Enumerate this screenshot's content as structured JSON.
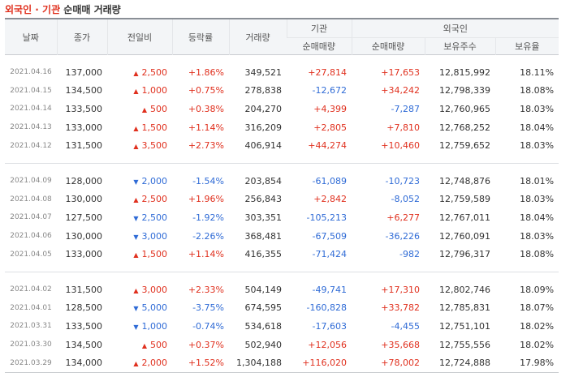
{
  "title": {
    "part1": "외국인 · 기관",
    "part2": " 순매매 거래량"
  },
  "headers": {
    "date": "날짜",
    "close": "종가",
    "change": "전일비",
    "rate": "등락률",
    "volume": "거래량",
    "inst": "기관",
    "inst_net": "순매매량",
    "foreign": "외국인",
    "foreign_net": "순매매량",
    "foreign_hold": "보유주수",
    "foreign_ratio": "보유율"
  },
  "colors": {
    "up": "#e0301e",
    "down": "#2f6bd6"
  },
  "rows": [
    {
      "date": "2021.04.16",
      "close": "137,000",
      "dir": "up",
      "change": "2,500",
      "rate": "+1.86%",
      "volume": "349,521",
      "inst": "+27,814",
      "foreign": "+17,653",
      "hold": "12,815,992",
      "ratio": "18.11%"
    },
    {
      "date": "2021.04.15",
      "close": "134,500",
      "dir": "up",
      "change": "1,000",
      "rate": "+0.75%",
      "volume": "278,838",
      "inst": "-12,672",
      "foreign": "+34,242",
      "hold": "12,798,339",
      "ratio": "18.08%"
    },
    {
      "date": "2021.04.14",
      "close": "133,500",
      "dir": "up",
      "change": "500",
      "rate": "+0.38%",
      "volume": "204,270",
      "inst": "+4,399",
      "foreign": "-7,287",
      "hold": "12,760,965",
      "ratio": "18.03%"
    },
    {
      "date": "2021.04.13",
      "close": "133,000",
      "dir": "up",
      "change": "1,500",
      "rate": "+1.14%",
      "volume": "316,209",
      "inst": "+2,805",
      "foreign": "+7,810",
      "hold": "12,768,252",
      "ratio": "18.04%"
    },
    {
      "date": "2021.04.12",
      "close": "131,500",
      "dir": "up",
      "change": "3,500",
      "rate": "+2.73%",
      "volume": "406,914",
      "inst": "+44,274",
      "foreign": "+10,460",
      "hold": "12,759,652",
      "ratio": "18.03%"
    },
    {
      "date": "2021.04.09",
      "close": "128,000",
      "dir": "down",
      "change": "2,000",
      "rate": "-1.54%",
      "volume": "203,854",
      "inst": "-61,089",
      "foreign": "-10,723",
      "hold": "12,748,876",
      "ratio": "18.01%"
    },
    {
      "date": "2021.04.08",
      "close": "130,000",
      "dir": "up",
      "change": "2,500",
      "rate": "+1.96%",
      "volume": "256,843",
      "inst": "+2,842",
      "foreign": "-8,052",
      "hold": "12,759,589",
      "ratio": "18.03%"
    },
    {
      "date": "2021.04.07",
      "close": "127,500",
      "dir": "down",
      "change": "2,500",
      "rate": "-1.92%",
      "volume": "303,351",
      "inst": "-105,213",
      "foreign": "+6,277",
      "hold": "12,767,011",
      "ratio": "18.04%"
    },
    {
      "date": "2021.04.06",
      "close": "130,000",
      "dir": "down",
      "change": "3,000",
      "rate": "-2.26%",
      "volume": "368,481",
      "inst": "-67,509",
      "foreign": "-36,226",
      "hold": "12,760,091",
      "ratio": "18.03%"
    },
    {
      "date": "2021.04.05",
      "close": "133,000",
      "dir": "up",
      "change": "1,500",
      "rate": "+1.14%",
      "volume": "416,355",
      "inst": "-71,424",
      "foreign": "-982",
      "hold": "12,796,317",
      "ratio": "18.08%"
    },
    {
      "date": "2021.04.02",
      "close": "131,500",
      "dir": "up",
      "change": "3,000",
      "rate": "+2.33%",
      "volume": "504,149",
      "inst": "-49,741",
      "foreign": "+17,310",
      "hold": "12,802,746",
      "ratio": "18.09%"
    },
    {
      "date": "2021.04.01",
      "close": "128,500",
      "dir": "down",
      "change": "5,000",
      "rate": "-3.75%",
      "volume": "674,595",
      "inst": "-160,828",
      "foreign": "+33,782",
      "hold": "12,785,831",
      "ratio": "18.07%"
    },
    {
      "date": "2021.03.31",
      "close": "133,500",
      "dir": "down",
      "change": "1,000",
      "rate": "-0.74%",
      "volume": "534,618",
      "inst": "-17,603",
      "foreign": "-4,455",
      "hold": "12,751,101",
      "ratio": "18.02%"
    },
    {
      "date": "2021.03.30",
      "close": "134,500",
      "dir": "up",
      "change": "500",
      "rate": "+0.37%",
      "volume": "502,940",
      "inst": "+12,056",
      "foreign": "+35,668",
      "hold": "12,755,556",
      "ratio": "18.02%"
    },
    {
      "date": "2021.03.29",
      "close": "134,000",
      "dir": "up",
      "change": "2,000",
      "rate": "+1.52%",
      "volume": "1,304,188",
      "inst": "+116,020",
      "foreign": "+78,002",
      "hold": "12,724,888",
      "ratio": "17.98%"
    }
  ]
}
